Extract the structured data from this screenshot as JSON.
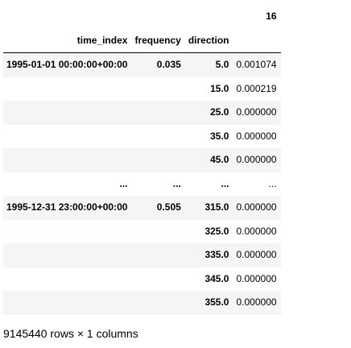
{
  "column_header": "16",
  "index_names": [
    "time_index",
    "frequency",
    "direction"
  ],
  "rows": [
    {
      "time": "1995-01-01 00:00:00+00:00",
      "frequency": "0.035",
      "direction": "5.0",
      "value": "0.001074"
    },
    {
      "time": "",
      "frequency": "",
      "direction": "15.0",
      "value": "0.000219"
    },
    {
      "time": "",
      "frequency": "",
      "direction": "25.0",
      "value": "0.000000"
    },
    {
      "time": "",
      "frequency": "",
      "direction": "35.0",
      "value": "0.000000"
    },
    {
      "time": "",
      "frequency": "",
      "direction": "45.0",
      "value": "0.000000"
    },
    {
      "time": "...",
      "frequency": "...",
      "direction": "...",
      "value": "..."
    },
    {
      "time": "1995-12-31 23:00:00+00:00",
      "frequency": "0.505",
      "direction": "315.0",
      "value": "0.000000"
    },
    {
      "time": "",
      "frequency": "",
      "direction": "325.0",
      "value": "0.000000"
    },
    {
      "time": "",
      "frequency": "",
      "direction": "335.0",
      "value": "0.000000"
    },
    {
      "time": "",
      "frequency": "",
      "direction": "345.0",
      "value": "0.000000"
    },
    {
      "time": "",
      "frequency": "",
      "direction": "355.0",
      "value": "0.000000"
    }
  ],
  "footer": "9145440 rows × 1 columns"
}
